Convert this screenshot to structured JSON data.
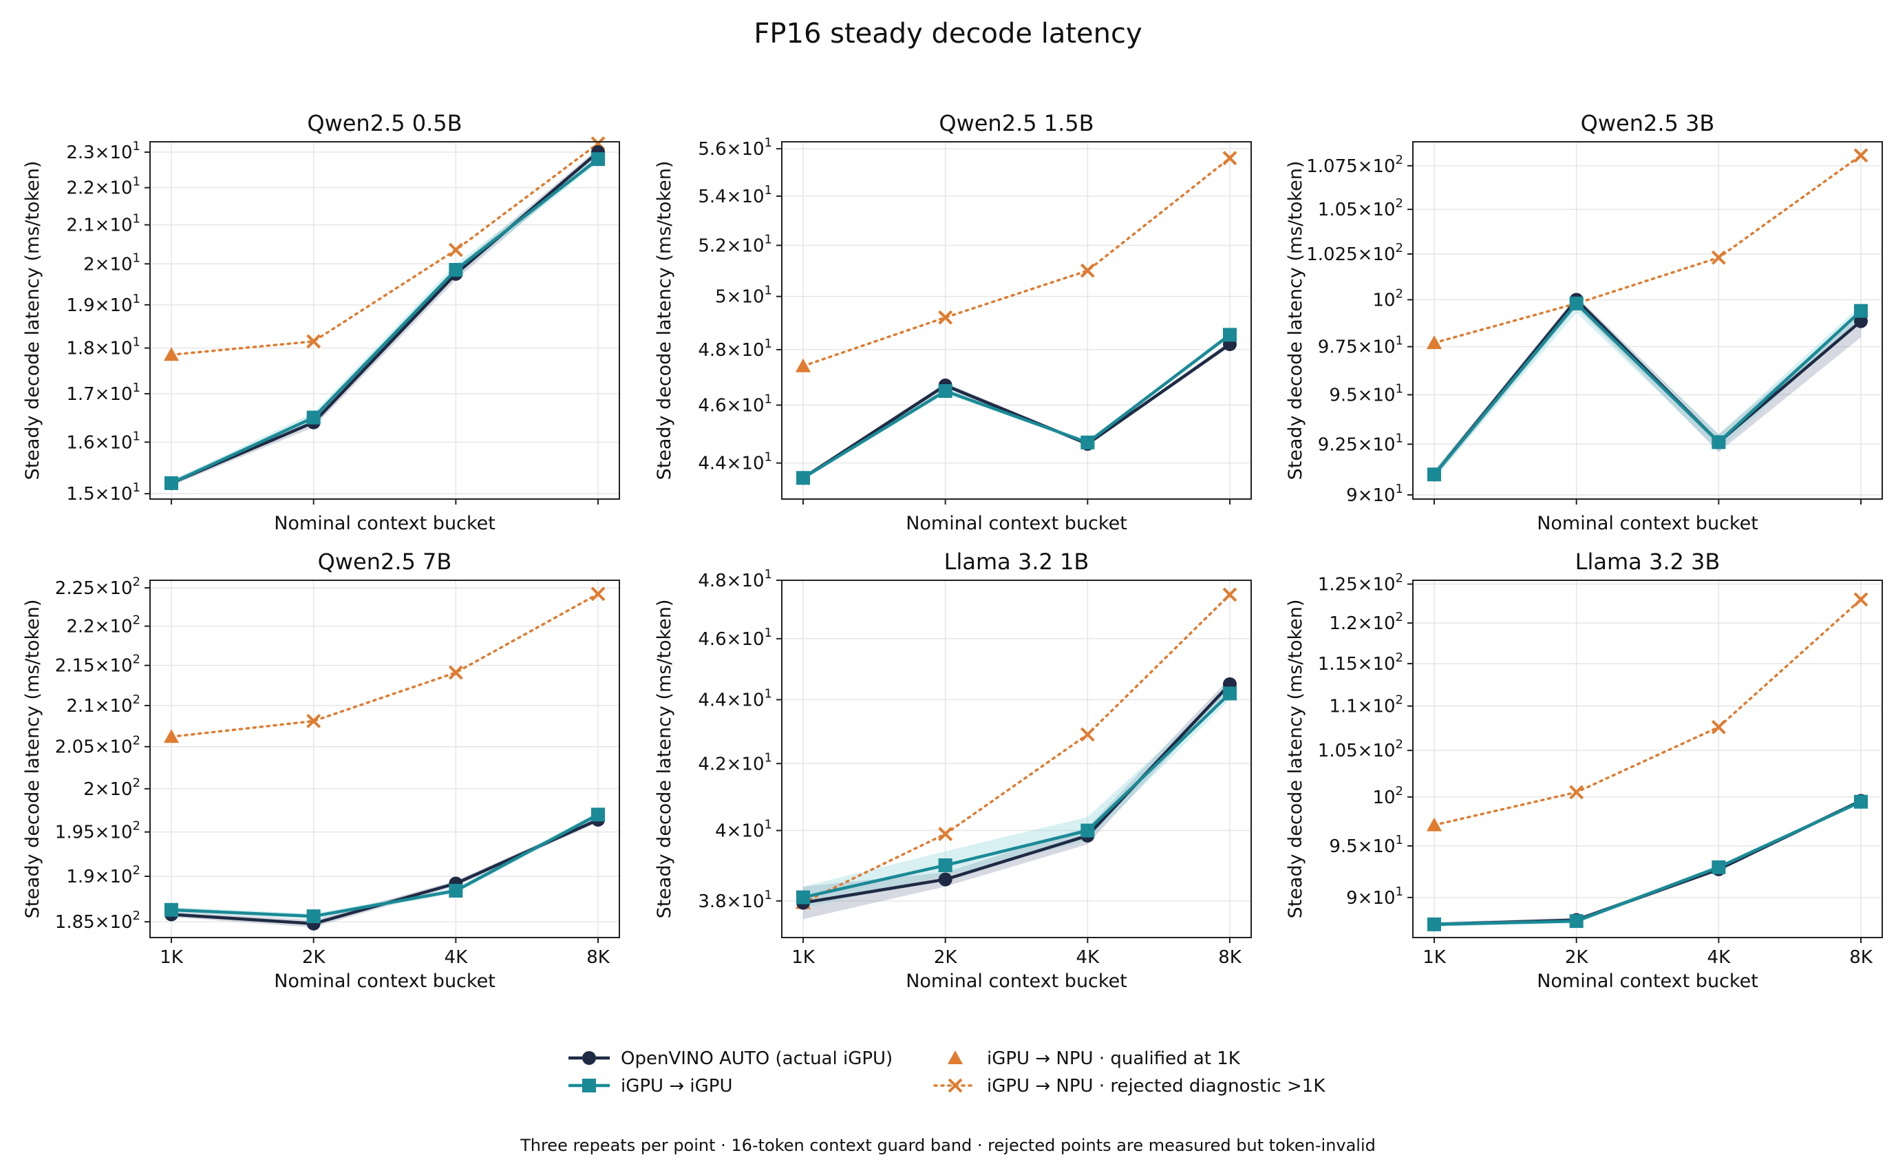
{
  "title": "FP16 steady decode latency",
  "footnote": "Three repeats per point · 16-token context guard band · rejected points are measured but token-invalid",
  "colors": {
    "auto": "#1f2a44",
    "igpu": "#1a8a96",
    "npu": "#e07b2f",
    "band_auto": "#8a93a8",
    "band_igpu": "#8fd3d9",
    "grid": "#e6e6e6"
  },
  "legend": [
    {
      "key": "auto",
      "label": "OpenVINO AUTO (actual iGPU)",
      "marker": "circle",
      "line": "solid"
    },
    {
      "key": "igpu",
      "label": "iGPU → iGPU",
      "marker": "square",
      "line": "solid"
    },
    {
      "key": "npu_qual",
      "label": "iGPU → NPU · qualified at 1K",
      "marker": "triangle",
      "line": "none"
    },
    {
      "key": "npu_rej",
      "label": "iGPU → NPU · rejected diagnostic >1K",
      "marker": "x",
      "line": "dotted"
    }
  ],
  "chart_data": [
    {
      "type": "line",
      "title": "Qwen2.5 0.5B",
      "xlabel": "Nominal context bucket",
      "ylabel": "Steady decode latency (ms/token)",
      "yscale": "log",
      "categories": [
        "1K",
        "2K",
        "4K",
        "8K"
      ],
      "show_xtick_labels": false,
      "ylim": [
        14.9,
        23.3
      ],
      "yticks": [
        {
          "v": 15,
          "m": "1.5",
          "e": "1"
        },
        {
          "v": 16,
          "m": "1.6",
          "e": "1"
        },
        {
          "v": 17,
          "m": "1.7",
          "e": "1"
        },
        {
          "v": 18,
          "m": "1.8",
          "e": "1"
        },
        {
          "v": 19,
          "m": "1.9",
          "e": "1"
        },
        {
          "v": 20,
          "m": "2",
          "e": "1"
        },
        {
          "v": 21,
          "m": "2.1",
          "e": "1"
        },
        {
          "v": 22,
          "m": "2.2",
          "e": "1"
        },
        {
          "v": 23,
          "m": "2.3",
          "e": "1"
        }
      ],
      "series": [
        {
          "key": "auto",
          "values": [
            15.2,
            16.4,
            19.75,
            23.0
          ],
          "band": [
            [
              15.15,
              15.25
            ],
            [
              16.3,
              16.5
            ],
            [
              19.6,
              19.9
            ],
            [
              22.85,
              23.1
            ]
          ]
        },
        {
          "key": "igpu",
          "values": [
            15.2,
            16.5,
            19.85,
            22.8
          ],
          "band": [
            [
              15.15,
              15.25
            ],
            [
              16.4,
              16.6
            ],
            [
              19.7,
              20.0
            ],
            [
              22.7,
              22.9
            ]
          ]
        },
        {
          "key": "npu",
          "values": [
            17.85,
            18.15,
            20.35,
            23.25
          ]
        }
      ]
    },
    {
      "type": "line",
      "title": "Qwen2.5 1.5B",
      "xlabel": "Nominal context bucket",
      "ylabel": "Steady decode latency (ms/token)",
      "yscale": "log",
      "categories": [
        "1K",
        "2K",
        "4K",
        "8K"
      ],
      "show_xtick_labels": false,
      "ylim": [
        42.8,
        56.3
      ],
      "yticks": [
        {
          "v": 44,
          "m": "4.4",
          "e": "1"
        },
        {
          "v": 46,
          "m": "4.6",
          "e": "1"
        },
        {
          "v": 48,
          "m": "4.8",
          "e": "1"
        },
        {
          "v": 50,
          "m": "5",
          "e": "1"
        },
        {
          "v": 52,
          "m": "5.2",
          "e": "1"
        },
        {
          "v": 54,
          "m": "5.4",
          "e": "1"
        },
        {
          "v": 56,
          "m": "5.6",
          "e": "1"
        }
      ],
      "series": [
        {
          "key": "auto",
          "values": [
            43.5,
            46.7,
            44.65,
            48.2
          ],
          "band": [
            [
              43.45,
              43.55
            ],
            [
              46.6,
              46.8
            ],
            [
              44.6,
              44.7
            ],
            [
              48.1,
              48.3
            ]
          ]
        },
        {
          "key": "igpu",
          "values": [
            43.5,
            46.5,
            44.7,
            48.55
          ],
          "band": [
            [
              43.45,
              43.55
            ],
            [
              46.4,
              46.6
            ],
            [
              44.65,
              44.75
            ],
            [
              48.45,
              48.65
            ]
          ]
        },
        {
          "key": "npu",
          "values": [
            47.4,
            49.2,
            51.0,
            55.6
          ]
        }
      ]
    },
    {
      "type": "line",
      "title": "Qwen2.5 3B",
      "xlabel": "Nominal context bucket",
      "ylabel": "Steady decode latency (ms/token)",
      "yscale": "log",
      "categories": [
        "1K",
        "2K",
        "4K",
        "8K"
      ],
      "show_xtick_labels": false,
      "ylim": [
        89.8,
        108.9
      ],
      "yticks": [
        {
          "v": 90,
          "m": "9",
          "e": "1"
        },
        {
          "v": 92.5,
          "m": "9.25",
          "e": "1"
        },
        {
          "v": 95,
          "m": "9.5",
          "e": "1"
        },
        {
          "v": 97.5,
          "m": "9.75",
          "e": "1"
        },
        {
          "v": 100,
          "m": "",
          "e": "2"
        },
        {
          "v": 102.5,
          "m": "1.025",
          "e": "2"
        },
        {
          "v": 105,
          "m": "1.05",
          "e": "2"
        },
        {
          "v": 107.5,
          "m": "1.075",
          "e": "2"
        }
      ],
      "series": [
        {
          "key": "auto",
          "values": [
            91.0,
            100.0,
            92.6,
            98.85
          ],
          "band": [
            [
              90.8,
              91.2
            ],
            [
              99.6,
              100.2
            ],
            [
              92.1,
              93.0
            ],
            [
              98.0,
              99.3
            ]
          ]
        },
        {
          "key": "igpu",
          "values": [
            91.0,
            99.8,
            92.6,
            99.4
          ],
          "band": [
            [
              90.8,
              91.2
            ],
            [
              99.3,
              100.1
            ],
            [
              92.2,
              93.0
            ],
            [
              99.0,
              99.7
            ]
          ]
        },
        {
          "key": "npu",
          "values": [
            97.7,
            99.8,
            102.3,
            108.1
          ]
        }
      ]
    },
    {
      "type": "line",
      "title": "Qwen2.5 7B",
      "xlabel": "Nominal context bucket",
      "ylabel": "Steady decode latency (ms/token)",
      "yscale": "log",
      "categories": [
        "1K",
        "2K",
        "4K",
        "8K"
      ],
      "show_xtick_labels": true,
      "ylim": [
        183.3,
        226.0
      ],
      "yticks": [
        {
          "v": 185,
          "m": "1.85",
          "e": "2"
        },
        {
          "v": 190,
          "m": "1.9",
          "e": "2"
        },
        {
          "v": 195,
          "m": "1.95",
          "e": "2"
        },
        {
          "v": 200,
          "m": "2",
          "e": "2"
        },
        {
          "v": 205,
          "m": "2.05",
          "e": "2"
        },
        {
          "v": 210,
          "m": "2.1",
          "e": "2"
        },
        {
          "v": 215,
          "m": "2.15",
          "e": "2"
        },
        {
          "v": 220,
          "m": "2.2",
          "e": "2"
        },
        {
          "v": 225,
          "m": "2.25",
          "e": "2"
        }
      ],
      "series": [
        {
          "key": "auto",
          "values": [
            185.8,
            184.8,
            189.2,
            196.4
          ],
          "band": [
            [
              185.5,
              186.1
            ],
            [
              184.4,
              185.2
            ],
            [
              188.9,
              189.5
            ],
            [
              196.1,
              196.7
            ]
          ]
        },
        {
          "key": "igpu",
          "values": [
            186.3,
            185.6,
            188.4,
            197.0
          ],
          "band": [
            [
              186.0,
              186.6
            ],
            [
              185.3,
              185.9
            ],
            [
              188.1,
              188.7
            ],
            [
              196.7,
              197.3
            ]
          ]
        },
        {
          "key": "npu",
          "values": [
            206.2,
            208.1,
            214.1,
            224.2
          ]
        }
      ]
    },
    {
      "type": "line",
      "title": "Llama 3.2 1B",
      "xlabel": "Nominal context bucket",
      "ylabel": "Steady decode latency (ms/token)",
      "yscale": "log",
      "categories": [
        "1K",
        "2K",
        "4K",
        "8K"
      ],
      "show_xtick_labels": true,
      "ylim": [
        37.0,
        48.0
      ],
      "yticks": [
        {
          "v": 38,
          "m": "3.8",
          "e": "1"
        },
        {
          "v": 40,
          "m": "4",
          "e": "1"
        },
        {
          "v": 42,
          "m": "4.2",
          "e": "1"
        },
        {
          "v": 44,
          "m": "4.4",
          "e": "1"
        },
        {
          "v": 46,
          "m": "4.6",
          "e": "1"
        },
        {
          "v": 48,
          "m": "4.8",
          "e": "1"
        }
      ],
      "series": [
        {
          "key": "auto",
          "values": [
            37.95,
            38.6,
            39.85,
            44.5
          ],
          "band": [
            [
              37.5,
              38.4
            ],
            [
              38.4,
              38.8
            ],
            [
              39.6,
              40.1
            ],
            [
              44.3,
              44.7
            ]
          ]
        },
        {
          "key": "igpu",
          "values": [
            38.1,
            39.0,
            40.0,
            44.2
          ],
          "band": [
            [
              37.8,
              38.4
            ],
            [
              38.7,
              39.4
            ],
            [
              39.7,
              40.4
            ],
            [
              44.0,
              44.4
            ]
          ]
        },
        {
          "key": "npu",
          "values": [
            37.95,
            39.9,
            42.9,
            47.5
          ]
        }
      ]
    },
    {
      "type": "line",
      "title": "Llama 3.2 3B",
      "xlabel": "Nominal context bucket",
      "ylabel": "Steady decode latency (ms/token)",
      "yscale": "log",
      "categories": [
        "1K",
        "2K",
        "4K",
        "8K"
      ],
      "show_xtick_labels": true,
      "ylim": [
        86.3,
        125.5
      ],
      "yticks": [
        {
          "v": 90,
          "m": "9",
          "e": "1"
        },
        {
          "v": 95,
          "m": "9.5",
          "e": "1"
        },
        {
          "v": 100,
          "m": "",
          "e": "2"
        },
        {
          "v": 105,
          "m": "1.05",
          "e": "2"
        },
        {
          "v": 110,
          "m": "1.1",
          "e": "2"
        },
        {
          "v": 115,
          "m": "1.15",
          "e": "2"
        },
        {
          "v": 120,
          "m": "1.2",
          "e": "2"
        },
        {
          "v": 125,
          "m": "1.25",
          "e": "2"
        }
      ],
      "series": [
        {
          "key": "auto",
          "values": [
            87.5,
            87.9,
            92.7,
            99.6
          ],
          "band": [
            [
              87.3,
              87.7
            ],
            [
              87.7,
              88.1
            ],
            [
              92.5,
              92.9
            ],
            [
              99.4,
              99.8
            ]
          ]
        },
        {
          "key": "igpu",
          "values": [
            87.5,
            87.8,
            92.9,
            99.5
          ],
          "band": [
            [
              87.3,
              87.7
            ],
            [
              87.6,
              88.0
            ],
            [
              92.7,
              93.1
            ],
            [
              99.3,
              99.7
            ]
          ]
        },
        {
          "key": "npu",
          "values": [
            97.1,
            100.5,
            107.6,
            123.0
          ]
        }
      ]
    }
  ]
}
